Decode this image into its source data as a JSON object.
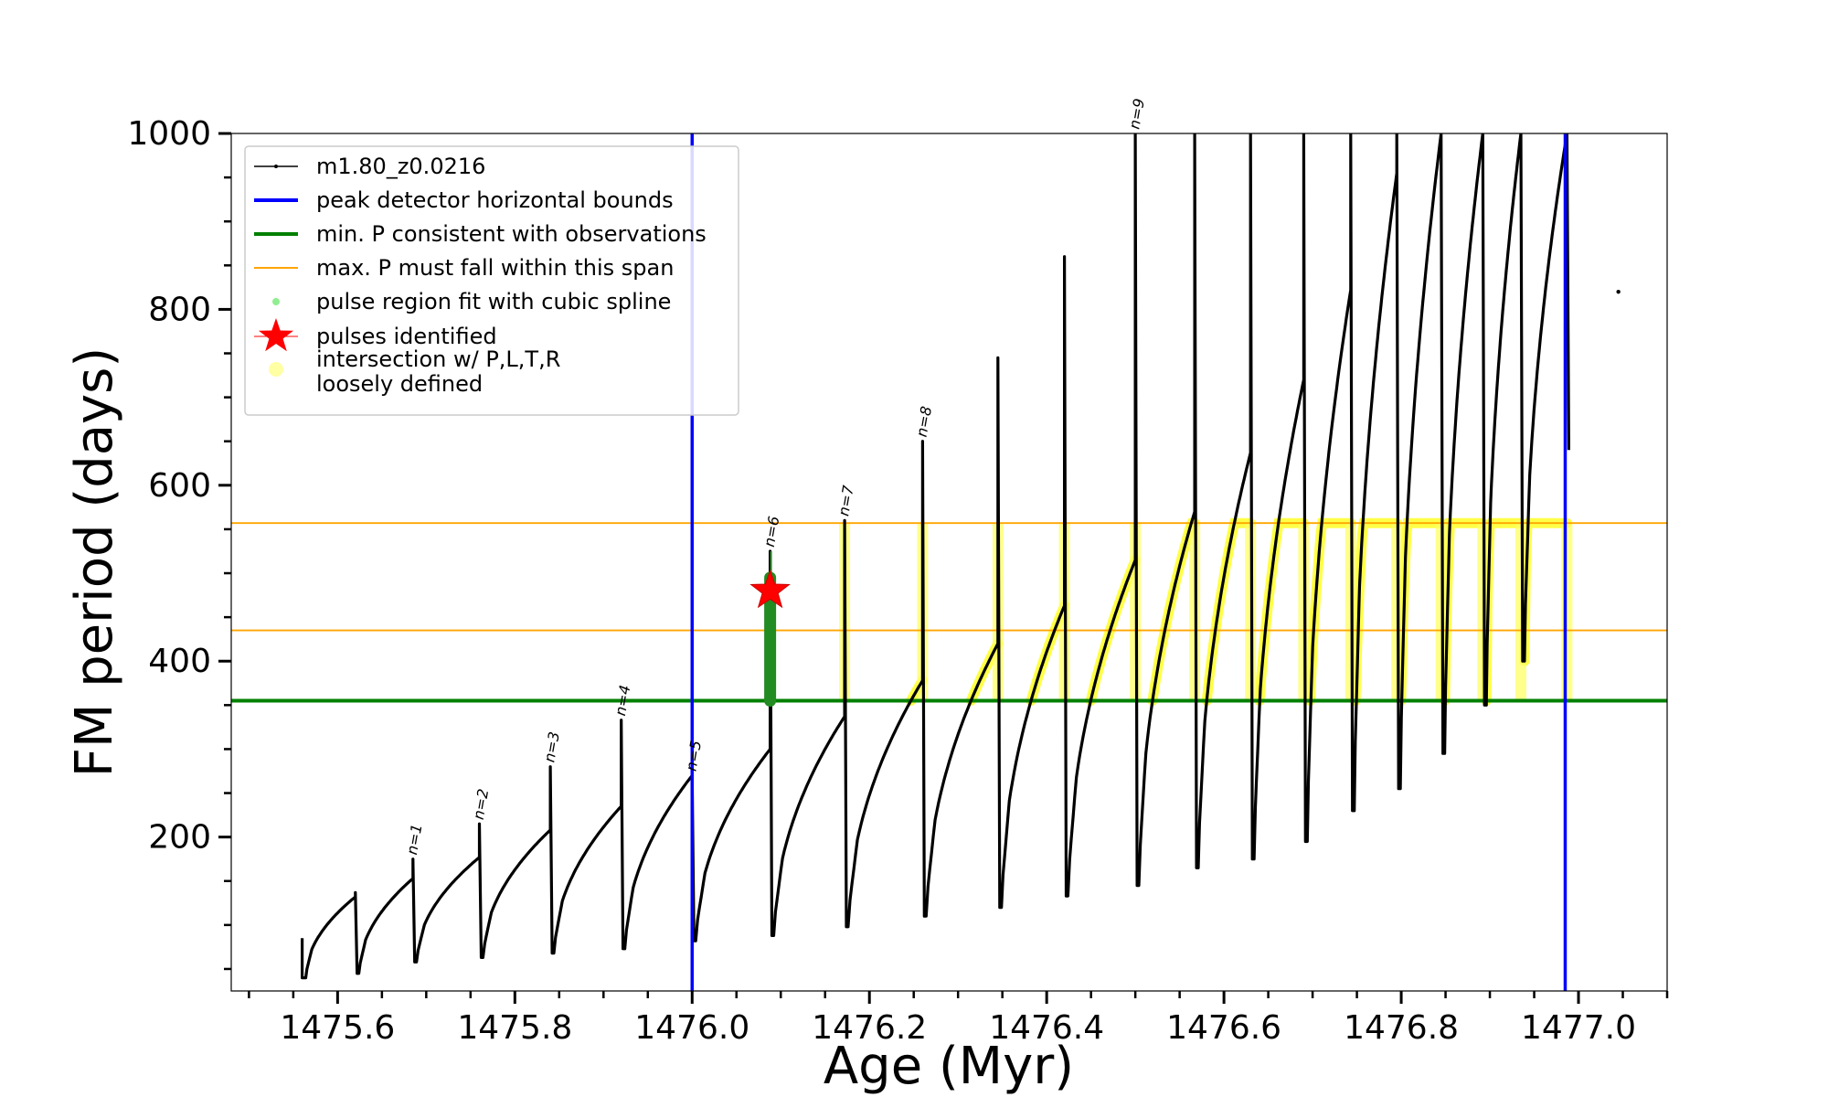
{
  "chart_data": {
    "type": "line",
    "xlabel": "Age (Myr)",
    "ylabel": "FM period (days)",
    "xlim": [
      1475.48,
      1477.1
    ],
    "ylim": [
      25,
      1000
    ],
    "x_ticks": [
      1475.6,
      1475.8,
      1476.0,
      1476.2,
      1476.4,
      1476.6,
      1476.8,
      1477.0
    ],
    "x_tick_labels": [
      "1475.6",
      "1475.8",
      "1476.0",
      "1476.2",
      "1476.4",
      "1476.6",
      "1476.8",
      "1477.0"
    ],
    "y_ticks": [
      200,
      400,
      600,
      800,
      1000
    ],
    "y_tick_labels": [
      "200",
      "400",
      "600",
      "800",
      "1000"
    ],
    "grid": false,
    "legend_position": "top-left",
    "legend": [
      {
        "label": "m1.80_z0.0216",
        "kind": "line-marker",
        "color": "#000000"
      },
      {
        "label": "peak detector horizontal bounds",
        "kind": "line",
        "color": "#0000ff"
      },
      {
        "label": "min. P consistent with observations",
        "kind": "line",
        "color": "#008000"
      },
      {
        "label": "max. P must fall within this span",
        "kind": "line",
        "color": "#ffa500"
      },
      {
        "label": "pulse region fit with cubic spline",
        "kind": "dot",
        "color": "#90ee90"
      },
      {
        "label": "pulses identified",
        "kind": "star",
        "color": "#ff0000"
      },
      {
        "label": "intersection w/ P,L,T,R",
        "label2": "loosely defined",
        "kind": "dot",
        "color": "#ffff66"
      }
    ],
    "peak_detector_bounds_x": [
      1476.0,
      1476.985
    ],
    "min_period_line": 355,
    "max_period_span": [
      435,
      557
    ],
    "pulse_identified": {
      "x": 1476.088,
      "y": 480
    },
    "stray_point": {
      "x": 1477.045,
      "y": 820
    },
    "series_name": "m1.80_z0.0216",
    "pulses": [
      {
        "x": 1475.56,
        "pre": null,
        "peak": 85,
        "min": 40,
        "label": ""
      },
      {
        "x": 1475.62,
        "pre": 132,
        "peak": 137,
        "min": 45,
        "label": ""
      },
      {
        "x": 1475.685,
        "pre": 153,
        "peak": 175,
        "min": 58,
        "label": "n=1"
      },
      {
        "x": 1475.76,
        "pre": 177,
        "peak": 215,
        "min": 63,
        "label": "n=2"
      },
      {
        "x": 1475.84,
        "pre": 208,
        "peak": 280,
        "min": 68,
        "label": "n=3"
      },
      {
        "x": 1475.92,
        "pre": 235,
        "peak": 333,
        "min": 73,
        "label": "n=4"
      },
      {
        "x": 1476.0,
        "pre": 270,
        "peak": 270,
        "min": 82,
        "label": "n=5"
      },
      {
        "x": 1476.088,
        "pre": 300,
        "peak": 525,
        "min": 88,
        "label": "n=6"
      },
      {
        "x": 1476.172,
        "pre": 337,
        "peak": 560,
        "min": 98,
        "label": "n=7"
      },
      {
        "x": 1476.26,
        "pre": 378,
        "peak": 650,
        "min": 110,
        "label": "n=8"
      },
      {
        "x": 1476.345,
        "pre": 420,
        "peak": 745,
        "min": 120,
        "label": ""
      },
      {
        "x": 1476.42,
        "pre": 463,
        "peak": 860,
        "min": 133,
        "label": ""
      },
      {
        "x": 1476.5,
        "pre": 515,
        "peak": 1000,
        "min": 145,
        "label": "n=9"
      },
      {
        "x": 1476.567,
        "pre": 570,
        "peak": 1000,
        "min": 165,
        "label": ""
      },
      {
        "x": 1476.63,
        "pre": 637,
        "peak": 1000,
        "min": 175,
        "label": ""
      },
      {
        "x": 1476.69,
        "pre": 720,
        "peak": 1000,
        "min": 195,
        "label": ""
      },
      {
        "x": 1476.743,
        "pre": 822,
        "peak": 1000,
        "min": 230,
        "label": ""
      },
      {
        "x": 1476.795,
        "pre": 955,
        "peak": 1000,
        "min": 255,
        "label": ""
      },
      {
        "x": 1476.845,
        "pre": 1000,
        "peak": 1000,
        "min": 295,
        "label": ""
      },
      {
        "x": 1476.892,
        "pre": 1000,
        "peak": 1000,
        "min": 350,
        "label": ""
      },
      {
        "x": 1476.935,
        "pre": 1000,
        "peak": 1000,
        "min": 400,
        "label": ""
      },
      {
        "x": 1476.987,
        "pre": 1000,
        "peak": 1000,
        "min": 640,
        "label": ""
      }
    ]
  }
}
